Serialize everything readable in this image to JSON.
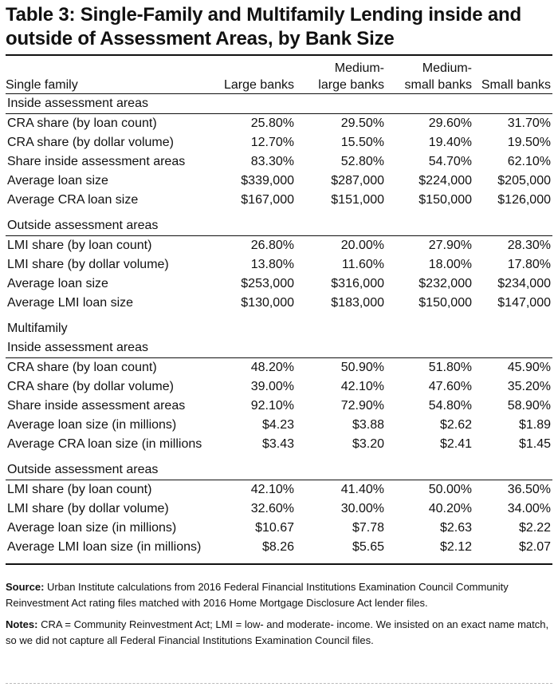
{
  "title": "Table 3: Single-Family and Multifamily Lending inside and outside of Assessment Areas, by Bank Size",
  "header": {
    "section_label": "Single family",
    "columns": [
      "Large banks",
      "Medium-\nlarge banks",
      "Medium-\nsmall banks",
      "Small banks"
    ]
  },
  "single_family": {
    "inside": {
      "label": "Inside assessment areas",
      "rows": [
        {
          "label": "CRA share (by loan count)",
          "values": [
            "25.80%",
            "29.50%",
            "29.60%",
            "31.70%"
          ]
        },
        {
          "label": "CRA share (by dollar volume)",
          "values": [
            "12.70%",
            "15.50%",
            "19.40%",
            "19.50%"
          ]
        },
        {
          "label": "Share inside assessment areas",
          "values": [
            "83.30%",
            "52.80%",
            "54.70%",
            "62.10%"
          ]
        },
        {
          "label": "Average loan size",
          "values": [
            "$339,000",
            "$287,000",
            "$224,000",
            "$205,000"
          ]
        },
        {
          "label": "Average CRA loan size",
          "values": [
            "$167,000",
            "$151,000",
            "$150,000",
            "$126,000"
          ]
        }
      ]
    },
    "outside": {
      "label": "Outside assessment areas",
      "rows": [
        {
          "label": "LMI share (by loan count)",
          "values": [
            "26.80%",
            "20.00%",
            "27.90%",
            "28.30%"
          ]
        },
        {
          "label": "LMI share (by dollar volume)",
          "values": [
            "13.80%",
            "11.60%",
            "18.00%",
            "17.80%"
          ]
        },
        {
          "label": "Average loan size",
          "values": [
            "$253,000",
            "$316,000",
            "$232,000",
            "$234,000"
          ]
        },
        {
          "label": "Average LMI loan size",
          "values": [
            "$130,000",
            "$183,000",
            "$150,000",
            "$147,000"
          ]
        }
      ]
    }
  },
  "multifamily": {
    "label": "Multifamily",
    "inside": {
      "label": "Inside assessment areas",
      "rows": [
        {
          "label": "CRA share (by loan count)",
          "values": [
            "48.20%",
            "50.90%",
            "51.80%",
            "45.90%"
          ]
        },
        {
          "label": "CRA share (by dollar volume)",
          "values": [
            "39.00%",
            "42.10%",
            "47.60%",
            "35.20%"
          ]
        },
        {
          "label": "Share inside assessment areas",
          "values": [
            "92.10%",
            "72.90%",
            "54.80%",
            "58.90%"
          ]
        },
        {
          "label": "Average loan size (in millions)",
          "values": [
            "$4.23",
            "$3.88",
            "$2.62",
            "$1.89"
          ]
        },
        {
          "label": "Average CRA loan size (in millions",
          "values": [
            "$3.43",
            "$3.20",
            "$2.41",
            "$1.45"
          ]
        }
      ]
    },
    "outside": {
      "label": "Outside assessment areas",
      "rows": [
        {
          "label": "LMI share (by loan count)",
          "values": [
            "42.10%",
            "41.40%",
            "50.00%",
            "36.50%"
          ]
        },
        {
          "label": "LMI share (by dollar volume)",
          "values": [
            "32.60%",
            "30.00%",
            "40.20%",
            "34.00%"
          ]
        },
        {
          "label": "Average loan size (in millions)",
          "values": [
            "$10.67",
            "$7.78",
            "$2.63",
            "$2.22"
          ]
        },
        {
          "label": "Average LMI loan size (in millions)",
          "values": [
            "$8.26",
            "$5.65",
            "$2.12",
            "$2.07"
          ]
        }
      ]
    }
  },
  "footnotes": {
    "source_label": "Source:",
    "source_text": " Urban Institute calculations from 2016 Federal Financial Institutions Examination Council Community Reinvestment Act rating files matched with 2016 Home Mortgage Disclosure Act lender files.",
    "notes_label": "Notes:",
    "notes_text": " CRA = Community Reinvestment Act; LMI = low- and moderate- income. We insisted on an exact name match, so we did not capture all Federal Financial Institutions Examination Council files."
  }
}
